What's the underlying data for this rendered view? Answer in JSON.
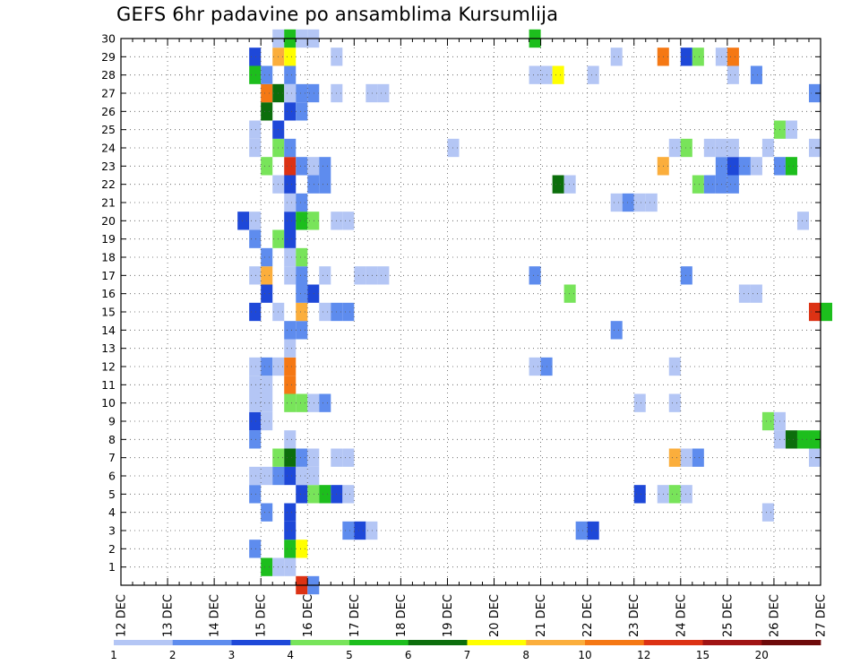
{
  "chart_data": {
    "type": "heatmap",
    "title": "GEFS 6hr padavine po ansamblima Kursumlija",
    "xlabel": "",
    "ylabel": "",
    "x_tick_labels": [
      "12 DEC",
      "13 DEC",
      "14 DEC",
      "15 DEC",
      "16 DEC",
      "17 DEC",
      "18 DEC",
      "19 DEC",
      "20 DEC",
      "21 DEC",
      "22 DEC",
      "23 DEC",
      "24 DEC",
      "25 DEC",
      "26 DEC",
      "27 DEC"
    ],
    "x_range_days": [
      0,
      15
    ],
    "time_step_hours": 6,
    "y_tick_labels": [
      "1",
      "2",
      "3",
      "4",
      "5",
      "6",
      "7",
      "8",
      "9",
      "10",
      "11",
      "12",
      "13",
      "14",
      "15",
      "16",
      "17",
      "18",
      "19",
      "20",
      "21",
      "22",
      "23",
      "24",
      "25",
      "26",
      "27",
      "28",
      "29",
      "30"
    ],
    "y_range": [
      0,
      30
    ],
    "grid": true,
    "colorbar": {
      "labels": [
        "1",
        "2",
        "3",
        "4",
        "5",
        "6",
        "7",
        "8",
        "10",
        "12",
        "15",
        "20"
      ],
      "colors": [
        "#b4c6f5",
        "#5e8cee",
        "#1e48d8",
        "#78e45a",
        "#1dbe1d",
        "#0c6e0c",
        "#ffff00",
        "#fbae3c",
        "#f57814",
        "#dc3214",
        "#a01414",
        "#6e0a0a"
      ]
    },
    "cells": [
      {
        "m": 1,
        "s": 12,
        "v": 5
      },
      {
        "m": 1,
        "s": 13,
        "v": 1
      },
      {
        "m": 1,
        "s": 14,
        "v": 1
      },
      {
        "m": 2,
        "s": 11,
        "v": 2
      },
      {
        "m": 2,
        "s": 14,
        "v": 5
      },
      {
        "m": 2,
        "s": 15,
        "v": 7
      },
      {
        "m": 3,
        "s": 14,
        "v": 3
      },
      {
        "m": 3,
        "s": 19,
        "v": 2
      },
      {
        "m": 3,
        "s": 20,
        "v": 3
      },
      {
        "m": 3,
        "s": 21,
        "v": 1
      },
      {
        "m": 3,
        "s": 39,
        "v": 2
      },
      {
        "m": 3,
        "s": 40,
        "v": 3
      },
      {
        "m": 4,
        "s": 12,
        "v": 2
      },
      {
        "m": 4,
        "s": 14,
        "v": 3
      },
      {
        "m": 4,
        "s": 55,
        "v": 1
      },
      {
        "m": 5,
        "s": 11,
        "v": 2
      },
      {
        "m": 5,
        "s": 15,
        "v": 3
      },
      {
        "m": 5,
        "s": 16,
        "v": 4
      },
      {
        "m": 5,
        "s": 17,
        "v": 5
      },
      {
        "m": 5,
        "s": 18,
        "v": 3
      },
      {
        "m": 5,
        "s": 19,
        "v": 1
      },
      {
        "m": 5,
        "s": 44,
        "v": 3
      },
      {
        "m": 5,
        "s": 46,
        "v": 1
      },
      {
        "m": 5,
        "s": 47,
        "v": 4
      },
      {
        "m": 5,
        "s": 48,
        "v": 1
      },
      {
        "m": 6,
        "s": 11,
        "v": 1
      },
      {
        "m": 6,
        "s": 12,
        "v": 1
      },
      {
        "m": 6,
        "s": 13,
        "v": 2
      },
      {
        "m": 6,
        "s": 14,
        "v": 3
      },
      {
        "m": 6,
        "s": 15,
        "v": 1
      },
      {
        "m": 6,
        "s": 16,
        "v": 1
      },
      {
        "m": 7,
        "s": 13,
        "v": 4
      },
      {
        "m": 7,
        "s": 14,
        "v": 6
      },
      {
        "m": 7,
        "s": 15,
        "v": 2
      },
      {
        "m": 7,
        "s": 16,
        "v": 1
      },
      {
        "m": 7,
        "s": 18,
        "v": 1
      },
      {
        "m": 7,
        "s": 19,
        "v": 1
      },
      {
        "m": 7,
        "s": 47,
        "v": 8
      },
      {
        "m": 7,
        "s": 48,
        "v": 1
      },
      {
        "m": 7,
        "s": 49,
        "v": 2
      },
      {
        "m": 7,
        "s": 59,
        "v": 1
      },
      {
        "m": 8,
        "s": 11,
        "v": 2
      },
      {
        "m": 8,
        "s": 14,
        "v": 1
      },
      {
        "m": 8,
        "s": 56,
        "v": 1
      },
      {
        "m": 8,
        "s": 57,
        "v": 6
      },
      {
        "m": 8,
        "s": 58,
        "v": 5
      },
      {
        "m": 8,
        "s": 59,
        "v": 5
      },
      {
        "m": 9,
        "s": 11,
        "v": 3
      },
      {
        "m": 9,
        "s": 12,
        "v": 1
      },
      {
        "m": 9,
        "s": 55,
        "v": 4
      },
      {
        "m": 9,
        "s": 56,
        "v": 1
      },
      {
        "m": 10,
        "s": 11,
        "v": 1
      },
      {
        "m": 10,
        "s": 12,
        "v": 1
      },
      {
        "m": 10,
        "s": 14,
        "v": 4
      },
      {
        "m": 10,
        "s": 15,
        "v": 4
      },
      {
        "m": 10,
        "s": 16,
        "v": 1
      },
      {
        "m": 10,
        "s": 17,
        "v": 2
      },
      {
        "m": 10,
        "s": 44,
        "v": 1
      },
      {
        "m": 10,
        "s": 47,
        "v": 1
      },
      {
        "m": 11,
        "s": 11,
        "v": 1
      },
      {
        "m": 11,
        "s": 12,
        "v": 1
      },
      {
        "m": 11,
        "s": 14,
        "v": 10
      },
      {
        "m": 12,
        "s": 11,
        "v": 1
      },
      {
        "m": 12,
        "s": 12,
        "v": 2
      },
      {
        "m": 12,
        "s": 13,
        "v": 1
      },
      {
        "m": 12,
        "s": 14,
        "v": 11
      },
      {
        "m": 12,
        "s": 35,
        "v": 1
      },
      {
        "m": 12,
        "s": 36,
        "v": 2
      },
      {
        "m": 12,
        "s": 47,
        "v": 1
      },
      {
        "m": 13,
        "s": 14,
        "v": 1
      },
      {
        "m": 14,
        "s": 14,
        "v": 2
      },
      {
        "m": 14,
        "s": 15,
        "v": 2
      },
      {
        "m": 14,
        "s": 42,
        "v": 2
      },
      {
        "m": 15,
        "s": 11,
        "v": 3
      },
      {
        "m": 15,
        "s": 13,
        "v": 1
      },
      {
        "m": 15,
        "s": 15,
        "v": 8
      },
      {
        "m": 15,
        "s": 17,
        "v": 1
      },
      {
        "m": 15,
        "s": 18,
        "v": 2
      },
      {
        "m": 15,
        "s": 19,
        "v": 2
      },
      {
        "m": 15,
        "s": 59,
        "v": 12
      },
      {
        "m": 15,
        "s": 60,
        "v": 5
      },
      {
        "m": 16,
        "s": 12,
        "v": 3
      },
      {
        "m": 16,
        "s": 15,
        "v": 2
      },
      {
        "m": 16,
        "s": 16,
        "v": 3
      },
      {
        "m": 16,
        "s": 38,
        "v": 4
      },
      {
        "m": 16,
        "s": 53,
        "v": 1
      },
      {
        "m": 16,
        "s": 54,
        "v": 1
      },
      {
        "m": 17,
        "s": 11,
        "v": 1
      },
      {
        "m": 17,
        "s": 12,
        "v": 8
      },
      {
        "m": 17,
        "s": 14,
        "v": 1
      },
      {
        "m": 17,
        "s": 15,
        "v": 2
      },
      {
        "m": 17,
        "s": 17,
        "v": 1
      },
      {
        "m": 17,
        "s": 20,
        "v": 1
      },
      {
        "m": 17,
        "s": 21,
        "v": 1
      },
      {
        "m": 17,
        "s": 22,
        "v": 1
      },
      {
        "m": 17,
        "s": 35,
        "v": 2
      },
      {
        "m": 17,
        "s": 48,
        "v": 2
      },
      {
        "m": 18,
        "s": 12,
        "v": 2
      },
      {
        "m": 18,
        "s": 14,
        "v": 1
      },
      {
        "m": 18,
        "s": 15,
        "v": 4
      },
      {
        "m": 19,
        "s": 11,
        "v": 2
      },
      {
        "m": 19,
        "s": 13,
        "v": 4
      },
      {
        "m": 19,
        "s": 14,
        "v": 3
      },
      {
        "m": 20,
        "s": 10,
        "v": 3
      },
      {
        "m": 20,
        "s": 11,
        "v": 1
      },
      {
        "m": 20,
        "s": 14,
        "v": 3
      },
      {
        "m": 20,
        "s": 15,
        "v": 5
      },
      {
        "m": 20,
        "s": 16,
        "v": 4
      },
      {
        "m": 20,
        "s": 18,
        "v": 1
      },
      {
        "m": 20,
        "s": 19,
        "v": 1
      },
      {
        "m": 20,
        "s": 58,
        "v": 1
      },
      {
        "m": 21,
        "s": 14,
        "v": 1
      },
      {
        "m": 21,
        "s": 15,
        "v": 2
      },
      {
        "m": 21,
        "s": 42,
        "v": 1
      },
      {
        "m": 21,
        "s": 43,
        "v": 2
      },
      {
        "m": 21,
        "s": 44,
        "v": 1
      },
      {
        "m": 21,
        "s": 45,
        "v": 1
      },
      {
        "m": 22,
        "s": 13,
        "v": 1
      },
      {
        "m": 22,
        "s": 14,
        "v": 3
      },
      {
        "m": 22,
        "s": 16,
        "v": 2
      },
      {
        "m": 22,
        "s": 17,
        "v": 2
      },
      {
        "m": 22,
        "s": 37,
        "v": 6
      },
      {
        "m": 22,
        "s": 38,
        "v": 1
      },
      {
        "m": 22,
        "s": 49,
        "v": 4
      },
      {
        "m": 22,
        "s": 50,
        "v": 2
      },
      {
        "m": 22,
        "s": 51,
        "v": 2
      },
      {
        "m": 22,
        "s": 52,
        "v": 2
      },
      {
        "m": 23,
        "s": 12,
        "v": 4
      },
      {
        "m": 23,
        "s": 14,
        "v": 12
      },
      {
        "m": 23,
        "s": 15,
        "v": 2
      },
      {
        "m": 23,
        "s": 16,
        "v": 1
      },
      {
        "m": 23,
        "s": 17,
        "v": 2
      },
      {
        "m": 23,
        "s": 46,
        "v": 8
      },
      {
        "m": 23,
        "s": 51,
        "v": 2
      },
      {
        "m": 23,
        "s": 52,
        "v": 3
      },
      {
        "m": 23,
        "s": 53,
        "v": 2
      },
      {
        "m": 23,
        "s": 54,
        "v": 1
      },
      {
        "m": 23,
        "s": 56,
        "v": 2
      },
      {
        "m": 23,
        "s": 57,
        "v": 5
      },
      {
        "m": 24,
        "s": 11,
        "v": 1
      },
      {
        "m": 24,
        "s": 13,
        "v": 4
      },
      {
        "m": 24,
        "s": 14,
        "v": 2
      },
      {
        "m": 24,
        "s": 28,
        "v": 1
      },
      {
        "m": 24,
        "s": 47,
        "v": 1
      },
      {
        "m": 24,
        "s": 48,
        "v": 4
      },
      {
        "m": 24,
        "s": 50,
        "v": 1
      },
      {
        "m": 24,
        "s": 51,
        "v": 1
      },
      {
        "m": 24,
        "s": 52,
        "v": 1
      },
      {
        "m": 24,
        "s": 55,
        "v": 1
      },
      {
        "m": 24,
        "s": 59,
        "v": 1
      },
      {
        "m": 25,
        "s": 11,
        "v": 1
      },
      {
        "m": 25,
        "s": 13,
        "v": 3
      },
      {
        "m": 25,
        "s": 56,
        "v": 4
      },
      {
        "m": 25,
        "s": 57,
        "v": 1
      },
      {
        "m": 26,
        "s": 12,
        "v": 6
      },
      {
        "m": 26,
        "s": 14,
        "v": 3
      },
      {
        "m": 26,
        "s": 15,
        "v": 2
      },
      {
        "m": 27,
        "s": 12,
        "v": 10
      },
      {
        "m": 27,
        "s": 13,
        "v": 6
      },
      {
        "m": 27,
        "s": 14,
        "v": 1
      },
      {
        "m": 27,
        "s": 15,
        "v": 2
      },
      {
        "m": 27,
        "s": 16,
        "v": 2
      },
      {
        "m": 27,
        "s": 18,
        "v": 1
      },
      {
        "m": 27,
        "s": 21,
        "v": 1
      },
      {
        "m": 27,
        "s": 22,
        "v": 1
      },
      {
        "m": 27,
        "s": 59,
        "v": 2
      },
      {
        "m": 28,
        "s": 11,
        "v": 5
      },
      {
        "m": 28,
        "s": 12,
        "v": 2
      },
      {
        "m": 28,
        "s": 14,
        "v": 2
      },
      {
        "m": 28,
        "s": 35,
        "v": 1
      },
      {
        "m": 28,
        "s": 36,
        "v": 1
      },
      {
        "m": 28,
        "s": 37,
        "v": 7
      },
      {
        "m": 28,
        "s": 40,
        "v": 1
      },
      {
        "m": 28,
        "s": 52,
        "v": 1
      },
      {
        "m": 28,
        "s": 54,
        "v": 2
      },
      {
        "m": 29,
        "s": 11,
        "v": 3
      },
      {
        "m": 29,
        "s": 13,
        "v": 8
      },
      {
        "m": 29,
        "s": 14,
        "v": 7
      },
      {
        "m": 29,
        "s": 18,
        "v": 1
      },
      {
        "m": 29,
        "s": 42,
        "v": 1
      },
      {
        "m": 29,
        "s": 46,
        "v": 10
      },
      {
        "m": 29,
        "s": 48,
        "v": 3
      },
      {
        "m": 29,
        "s": 49,
        "v": 4
      },
      {
        "m": 29,
        "s": 51,
        "v": 1
      },
      {
        "m": 29,
        "s": 52,
        "v": 10
      },
      {
        "m": 30,
        "s": 13,
        "v": 1
      },
      {
        "m": 30,
        "s": 14,
        "v": 5
      },
      {
        "m": 30,
        "s": 15,
        "v": 1
      },
      {
        "m": 30,
        "s": 16,
        "v": 1
      },
      {
        "m": 30,
        "s": 35,
        "v": 5
      },
      {
        "m": 0,
        "s": 15,
        "v": 12
      },
      {
        "m": 0,
        "s": 16,
        "v": 2
      }
    ]
  }
}
